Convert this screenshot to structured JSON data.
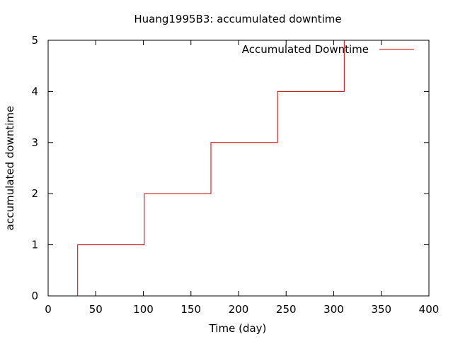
{
  "chart_data": {
    "type": "line",
    "title": "Huang1995B3: accumulated downtime",
    "xlabel": "Time (day)",
    "ylabel": "accumulated downtime",
    "xlim": [
      0,
      400
    ],
    "ylim": [
      0,
      5
    ],
    "x_ticks": [
      "0",
      "50",
      "100",
      "150",
      "200",
      "250",
      "300",
      "350",
      "400"
    ],
    "y_ticks": [
      "0",
      "1",
      "2",
      "3",
      "4",
      "5"
    ],
    "legend_position": "top-right",
    "grid": false,
    "series": [
      {
        "name": "Accumulated Downtime",
        "color": "#cc0000",
        "step": true,
        "x": [
          31,
          101,
          171,
          241,
          311
        ],
        "y": [
          1,
          2,
          3,
          4,
          5
        ]
      }
    ]
  }
}
